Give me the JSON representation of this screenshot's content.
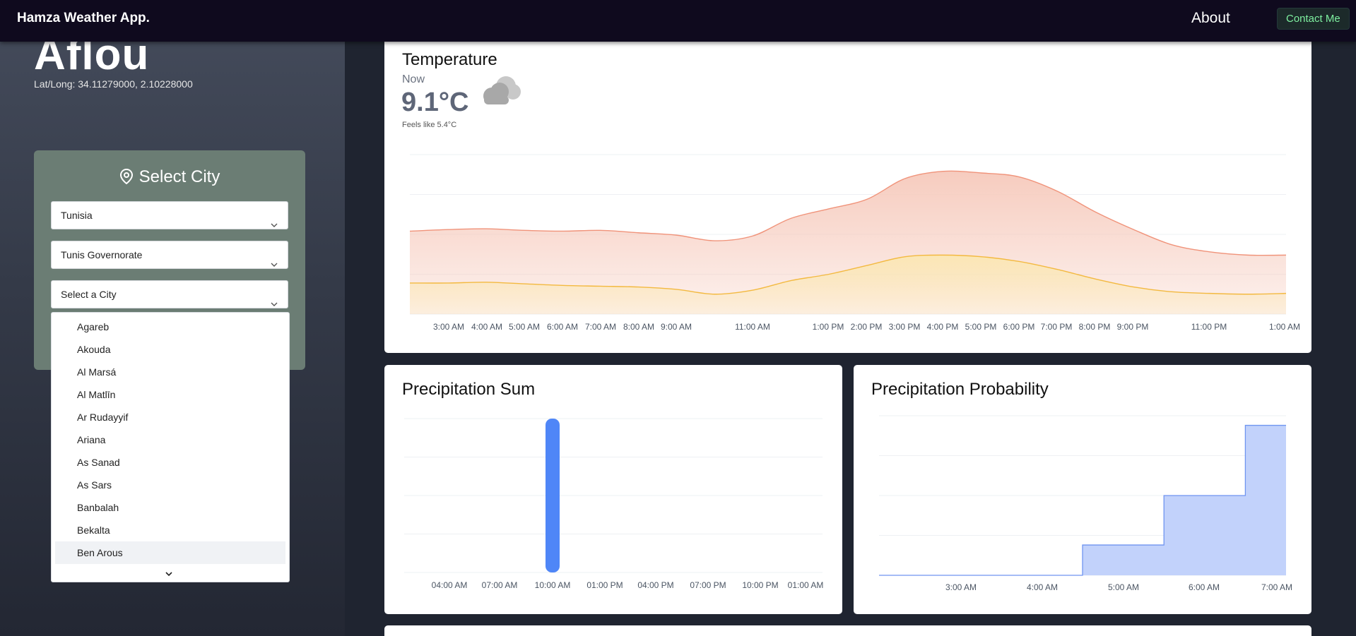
{
  "app": {
    "brand": "Hamza Weather App.",
    "nav": {
      "about": "About",
      "contact": "Contact Me"
    },
    "colors": {
      "navbar": "#0f0a1e",
      "contact_text": "#7ef0a0",
      "card_bg": "#6b7d74"
    }
  },
  "location": {
    "city": "Aflou",
    "latlong": "Lat/Long: 34.11279000, 2.10228000"
  },
  "select_city": {
    "title": "Select City",
    "icon": "map-pin-icon",
    "country": "Tunisia",
    "governorate": "Tunis Governorate",
    "city_placeholder": "Select a City",
    "options": [
      "Agareb",
      "Akouda",
      "Al Marsá",
      "Al Matlīn",
      "Ar Rudayyif",
      "Ariana",
      "As Sanad",
      "As Sars",
      "Banbalah",
      "Bekalta",
      "Ben Arous"
    ],
    "highlighted": "Ben Arous"
  },
  "temperature": {
    "title": "Temperature",
    "now_label": "Now",
    "value": "9.1°C",
    "feels_like": "Feels like 5.4°C",
    "condition_icon": "cloud-icon",
    "chart_data": {
      "type": "area",
      "x_ticks": [
        "3:00 AM",
        "4:00 AM",
        "5:00 AM",
        "6:00 AM",
        "7:00 AM",
        "8:00 AM",
        "9:00 AM",
        "11:00 AM",
        "1:00 PM",
        "2:00 PM",
        "3:00 PM",
        "4:00 PM",
        "5:00 PM",
        "6:00 PM",
        "7:00 PM",
        "8:00 PM",
        "9:00 PM",
        "11:00 PM",
        "1:00 AM"
      ],
      "ylim": [
        0,
        20
      ],
      "grid": true,
      "series": [
        {
          "color": "#f0937a",
          "fill": "#f6c9bb",
          "points": [
            [
              0,
              10.4
            ],
            [
              1,
              10.6
            ],
            [
              2,
              10.7
            ],
            [
              3,
              10.5
            ],
            [
              4,
              10.4
            ],
            [
              5,
              10.5
            ],
            [
              6,
              10.2
            ],
            [
              7,
              9.9
            ],
            [
              8,
              9.2
            ],
            [
              9,
              9.8
            ],
            [
              10,
              12.0
            ],
            [
              11,
              13.2
            ],
            [
              12,
              14.4
            ],
            [
              13,
              17.0
            ],
            [
              14,
              17.9
            ],
            [
              15,
              17.7
            ],
            [
              16,
              17.2
            ],
            [
              17,
              15.4
            ],
            [
              18,
              12.8
            ],
            [
              19,
              10.6
            ],
            [
              20,
              8.7
            ],
            [
              21,
              7.8
            ],
            [
              22,
              7.4
            ],
            [
              23,
              7.4
            ]
          ]
        },
        {
          "color": "#f3b940",
          "fill": "#fbe7b3",
          "points": [
            [
              0,
              3.9
            ],
            [
              1,
              3.9
            ],
            [
              2,
              4.0
            ],
            [
              3,
              3.8
            ],
            [
              4,
              3.6
            ],
            [
              5,
              3.5
            ],
            [
              6,
              3.4
            ],
            [
              7,
              3.1
            ],
            [
              8,
              2.5
            ],
            [
              9,
              3.0
            ],
            [
              10,
              4.2
            ],
            [
              11,
              5.0
            ],
            [
              12,
              6.1
            ],
            [
              13,
              7.2
            ],
            [
              14,
              7.4
            ],
            [
              15,
              7.2
            ],
            [
              16,
              6.6
            ],
            [
              17,
              5.6
            ],
            [
              18,
              4.4
            ],
            [
              19,
              3.4
            ],
            [
              20,
              2.8
            ],
            [
              21,
              2.6
            ],
            [
              22,
              2.5
            ],
            [
              23,
              2.6
            ]
          ]
        }
      ]
    }
  },
  "precip_sum": {
    "title": "Precipitation Sum",
    "chart_data": {
      "type": "bar",
      "x_ticks": [
        "04:00 AM",
        "07:00 AM",
        "10:00 AM",
        "01:00 PM",
        "04:00 PM",
        "07:00 PM",
        "10:00 PM",
        "01:00 AM"
      ],
      "ylim": [
        0,
        1
      ],
      "grid": true,
      "bars": [
        {
          "at": "10:00 AM",
          "value": 1.0
        }
      ],
      "color": "#4f86f7"
    }
  },
  "precip_prob": {
    "title": "Precipitation Probability",
    "chart_data": {
      "type": "area",
      "x_ticks": [
        "3:00 AM",
        "4:00 AM",
        "5:00 AM",
        "6:00 AM",
        "7:00 AM"
      ],
      "ylim": [
        0,
        100
      ],
      "grid": true,
      "color": "#6f95f0",
      "fill": "#bfd0fb",
      "steps": [
        [
          0,
          0
        ],
        [
          2.5,
          0
        ],
        [
          2.5,
          19
        ],
        [
          3.5,
          19
        ],
        [
          3.5,
          50
        ],
        [
          4.5,
          50
        ],
        [
          4.5,
          94
        ],
        [
          5,
          94
        ]
      ]
    }
  }
}
